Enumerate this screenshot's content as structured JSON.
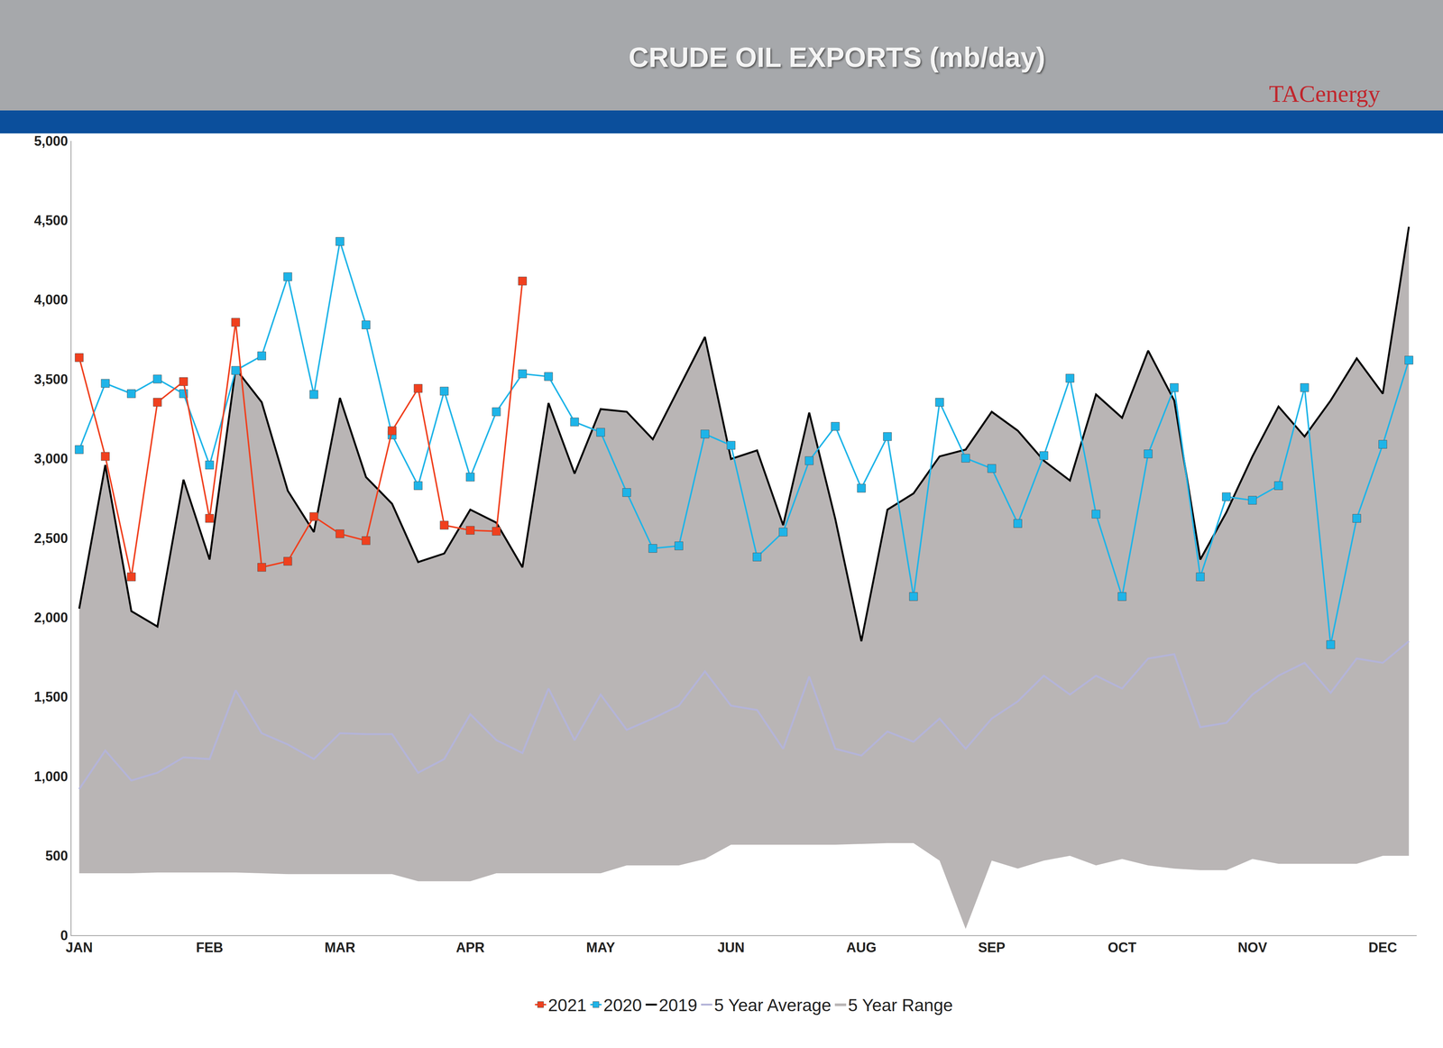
{
  "chart_data": {
    "type": "line",
    "title": "CRUDE OIL EXPORTS (mb/day)",
    "annotations": [
      "TACenergy"
    ],
    "categories": [
      "JAN",
      null,
      null,
      null,
      null,
      "FEB",
      null,
      null,
      null,
      null,
      "MAR",
      null,
      null,
      null,
      null,
      "APR",
      null,
      null,
      null,
      null,
      "MAY",
      null,
      null,
      null,
      null,
      "JUN",
      null,
      null,
      null,
      null,
      "AUG",
      null,
      null,
      null,
      null,
      "SEP",
      null,
      null,
      null,
      null,
      "OCT",
      null,
      null,
      null,
      null,
      "NOV",
      null,
      null,
      null,
      null,
      "DEC",
      null
    ],
    "series": [
      {
        "name": "5 Year Range",
        "type": "range",
        "color": "#b9b5b5",
        "low": [
          390,
          390,
          390,
          395,
          395,
          395,
          395,
          390,
          385,
          385,
          385,
          385,
          385,
          340,
          340,
          340,
          390,
          390,
          390,
          390,
          390,
          440,
          440,
          440,
          480,
          570,
          570,
          570,
          570,
          570,
          575,
          580,
          580,
          470,
          40,
          470,
          420,
          470,
          500,
          440,
          480,
          440,
          420,
          410,
          410,
          480,
          450,
          450,
          450,
          450,
          500,
          500
        ],
        "high": [
          2056,
          2960,
          2040,
          1943,
          2868,
          2365,
          3566,
          3355,
          2798,
          2538,
          3382,
          2884,
          2716,
          2349,
          2403,
          2679,
          2597,
          2316,
          3350,
          2906,
          3312,
          3295,
          3122,
          3447,
          3766,
          2998,
          3052,
          2581,
          3290,
          2620,
          1851,
          2679,
          2781,
          3014,
          3057,
          3295,
          3176,
          2987,
          2862,
          3404,
          3257,
          3680,
          3366,
          2365,
          2662,
          3014,
          3328,
          3139,
          3366,
          3631,
          3409,
          4459
        ]
      },
      {
        "name": "5 Year Average",
        "color": "#b4b4d8",
        "line_style": "solid",
        "values": [
          920,
          1163,
          974,
          1023,
          1120,
          1109,
          1542,
          1272,
          1201,
          1109,
          1272,
          1266,
          1266,
          1023,
          1109,
          1391,
          1228,
          1147,
          1553,
          1228,
          1515,
          1293,
          1364,
          1445,
          1661,
          1445,
          1418,
          1174,
          1629,
          1174,
          1131,
          1282,
          1218,
          1364,
          1174,
          1364,
          1472,
          1634,
          1515,
          1634,
          1553,
          1742,
          1769,
          1310,
          1337,
          1515,
          1634,
          1715,
          1526,
          1742,
          1715,
          1851
        ]
      },
      {
        "name": "2019",
        "color": "#000000",
        "line_style": "solid",
        "values": [
          2056,
          2960,
          2040,
          1943,
          2868,
          2365,
          3566,
          3355,
          2798,
          2538,
          3382,
          2884,
          2716,
          2349,
          2403,
          2679,
          2597,
          2316,
          3350,
          2906,
          3312,
          3295,
          3122,
          3447,
          3766,
          2998,
          3052,
          2581,
          3290,
          2620,
          1851,
          2679,
          2781,
          3014,
          3057,
          3295,
          3176,
          2987,
          2862,
          3404,
          3257,
          3680,
          3366,
          2365,
          2662,
          3014,
          3328,
          3139,
          3366,
          3631,
          3409,
          4459
        ]
      },
      {
        "name": "2020",
        "color": "#1eb4e8",
        "line_style": "solid",
        "marker": "square",
        "values": [
          3057,
          3474,
          3409,
          3501,
          3409,
          2960,
          3555,
          3647,
          4145,
          3404,
          4367,
          3842,
          3149,
          2830,
          3425,
          2884,
          3295,
          3534,
          3517,
          3231,
          3166,
          2787,
          2435,
          2451,
          3155,
          3084,
          2381,
          2538,
          2987,
          3203,
          2814,
          3139,
          2132,
          3355,
          3003,
          2938,
          2592,
          3019,
          3506,
          2651,
          2132,
          3030,
          3447,
          2256,
          2760,
          2738,
          2830,
          3447,
          1829,
          2624,
          3090,
          3620
        ]
      },
      {
        "name": "2021",
        "color": "#f0401e",
        "line_style": "solid",
        "marker": "square",
        "values": [
          3636,
          3014,
          2256,
          3355,
          3485,
          2624,
          3858,
          2316,
          2354,
          2635,
          2527,
          2484,
          3176,
          3442,
          2581,
          2549,
          2543,
          4118,
          null,
          null,
          null,
          null,
          null,
          null,
          null,
          null,
          null,
          null,
          null,
          null,
          null,
          null,
          null,
          null,
          null,
          null,
          null,
          null,
          null,
          null,
          null,
          null,
          null,
          null,
          null,
          null,
          null,
          null,
          null,
          null,
          null,
          null
        ]
      }
    ],
    "ylim": [
      0,
      5000
    ],
    "yticks": [
      0,
      500,
      {
        "value": 1000,
        "label": "1,000"
      },
      {
        "value": 1500,
        "label": "1,500"
      },
      {
        "value": 2000,
        "label": "2,000"
      },
      {
        "value": 2500,
        "label": "2,500"
      },
      {
        "value": 3000,
        "label": "3,000"
      },
      {
        "value": 3500,
        "label": "3,500"
      },
      {
        "value": 4000,
        "label": "4,000"
      },
      {
        "value": 4500,
        "label": "4,500"
      },
      {
        "value": 5000,
        "label": "5,000"
      }
    ],
    "grid": false,
    "legend": "bottom"
  }
}
